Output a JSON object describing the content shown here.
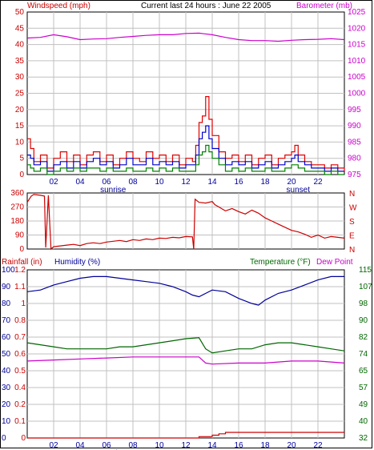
{
  "header": {
    "windspeed_label": "Windspeed (mph)",
    "title": "Current last 24 hours : June 22 2005",
    "barometer_label": "Barometer (mb)"
  },
  "colors": {
    "windspeed_gust": "#e00000",
    "windspeed_avg": "#0000cc",
    "windspeed_low": "#008000",
    "barometer": "#cc00cc",
    "direction": "#cc0000",
    "humidity": "#000099",
    "temperature": "#006600",
    "dewpoint": "#cc00cc",
    "rainfall": "#cc0000",
    "grid": "#c0c0c0"
  },
  "x_axis": {
    "ticks": [
      "02",
      "04",
      "06",
      "08",
      "10",
      "12",
      "14",
      "16",
      "18",
      "20",
      "22"
    ],
    "sunrise_label": "sunrise",
    "sunset_label": "sunset"
  },
  "panel2": {
    "degree_ticks": [
      "360",
      "270",
      "180",
      "90",
      "0"
    ],
    "compass_ticks": [
      "N",
      "W",
      "S",
      "E",
      "N"
    ]
  },
  "panel3": {
    "rainfall_label": "Rainfall (in)",
    "humidity_label": "Humidity (%)",
    "temperature_label": "Temperature (°F)",
    "dewpoint_label": "Dew Point"
  },
  "chart_data": [
    {
      "type": "line",
      "title": "Current last 24 hours : June 22 2005",
      "x_unit": "hour",
      "xlim": [
        0,
        24
      ],
      "ylabel_left": "Windspeed (mph)",
      "ylabel_right": "Barometer (mb)",
      "ylim_left": [
        0,
        50
      ],
      "ylim_right": [
        975,
        1025
      ],
      "yticks_left": [
        "0",
        "5",
        "10",
        "15",
        "20",
        "25",
        "30",
        "35",
        "40",
        "45",
        "50"
      ],
      "yticks_right": [
        "975",
        "980",
        "985",
        "990",
        "995",
        "1000",
        "1005",
        "1010",
        "1015",
        "1020",
        "1025"
      ],
      "grid": true,
      "series": [
        {
          "axis": "right",
          "x": [
            0,
            1,
            2,
            3,
            4,
            5,
            6,
            7,
            8,
            9,
            10,
            11,
            12,
            13,
            14,
            15,
            16,
            17,
            18,
            19,
            20,
            21,
            22,
            23,
            24
          ],
          "values": [
            1017,
            1017.2,
            1018,
            1017.4,
            1016.5,
            1016.7,
            1016.8,
            1017.2,
            1017.5,
            1017.8,
            1018,
            1018,
            1018.4,
            1018.5,
            1018,
            1017.2,
            1016.5,
            1016.2,
            1016.2,
            1016,
            1016.3,
            1016.5,
            1016.6,
            1016.8,
            1016.5
          ]
        },
        {
          "axis": "left",
          "x": [
            0,
            0.25,
            0.5,
            1,
            1.5,
            2,
            2.5,
            3,
            3.5,
            4,
            4.5,
            5,
            5.5,
            6,
            6.5,
            7,
            7.5,
            8,
            8.5,
            9,
            9.5,
            10,
            10.5,
            11,
            11.5,
            12,
            12.5,
            12.75,
            13,
            13.25,
            13.5,
            13.75,
            14,
            14.5,
            15,
            15.5,
            16,
            16.5,
            17,
            17.5,
            18,
            18.5,
            19,
            19.5,
            20,
            20.25,
            20.5,
            21,
            21.5,
            22,
            22.5,
            23,
            23.5,
            24
          ],
          "values": [
            11,
            8,
            4,
            6,
            2,
            5,
            7,
            4,
            6,
            3,
            6,
            7,
            4,
            6,
            3,
            5,
            7,
            5,
            4,
            7,
            5,
            6,
            4,
            6,
            3,
            5,
            4,
            9,
            16,
            18,
            24,
            17,
            12,
            7,
            5,
            6,
            4,
            6,
            3,
            5,
            6,
            3,
            5,
            6,
            7,
            9,
            6,
            4,
            3,
            3,
            2,
            3,
            2,
            1
          ]
        },
        {
          "axis": "left",
          "x": [
            0,
            0.25,
            0.5,
            1,
            1.5,
            2,
            2.5,
            3,
            3.5,
            4,
            4.5,
            5,
            5.5,
            6,
            6.5,
            7,
            7.5,
            8,
            8.5,
            9,
            9.5,
            10,
            10.5,
            11,
            11.5,
            12,
            12.5,
            12.75,
            13,
            13.25,
            13.5,
            13.75,
            14,
            14.5,
            15,
            15.5,
            16,
            16.5,
            17,
            17.5,
            18,
            18.5,
            19,
            19.5,
            20,
            20.25,
            20.5,
            21,
            21.5,
            22,
            22.5,
            23,
            23.5,
            24
          ],
          "values": [
            6,
            5,
            3,
            4,
            1,
            3,
            4,
            2,
            4,
            2,
            4,
            5,
            3,
            4,
            2,
            3,
            5,
            3,
            3,
            5,
            3,
            4,
            3,
            4,
            2,
            3,
            3,
            6,
            11,
            13,
            15,
            11,
            8,
            5,
            3,
            4,
            3,
            4,
            2,
            3,
            4,
            2,
            3,
            4,
            5,
            6,
            4,
            3,
            2,
            2,
            1,
            2,
            1,
            1
          ]
        },
        {
          "axis": "left",
          "x": [
            0,
            0.25,
            0.5,
            1,
            1.5,
            2,
            2.5,
            3,
            3.5,
            4,
            4.5,
            5,
            5.5,
            6,
            6.5,
            7,
            7.5,
            8,
            8.5,
            9,
            9.5,
            10,
            10.5,
            11,
            11.5,
            12,
            12.5,
            12.75,
            13,
            13.25,
            13.5,
            13.75,
            14,
            14.5,
            15,
            15.5,
            16,
            16.5,
            17,
            17.5,
            18,
            18.5,
            19,
            19.5,
            20,
            20.25,
            20.5,
            21,
            21.5,
            22,
            22.5,
            23,
            23.5,
            24
          ],
          "values": [
            3,
            2,
            1,
            2,
            0,
            1,
            2,
            1,
            2,
            1,
            2,
            2,
            1,
            2,
            1,
            1,
            2,
            1,
            1,
            2,
            1,
            2,
            1,
            2,
            1,
            1,
            1,
            3,
            6,
            7,
            9,
            7,
            5,
            3,
            1,
            2,
            1,
            2,
            1,
            1,
            2,
            1,
            1,
            2,
            3,
            3,
            2,
            1,
            1,
            1,
            0,
            1,
            0,
            0
          ]
        }
      ]
    },
    {
      "type": "line",
      "ylabel_left": "",
      "ylim": [
        0,
        360
      ],
      "yticks": [
        "360",
        "270",
        "180",
        "90",
        "0"
      ],
      "grid": true,
      "series": [
        {
          "x": [
            0,
            0.3,
            0.5,
            1,
            1.3,
            1.4,
            1.6,
            1.8,
            2,
            2.5,
            3,
            3.5,
            4,
            4.5,
            5,
            5.5,
            6,
            6.5,
            7,
            7.5,
            8,
            8.5,
            9,
            9.5,
            10,
            10.5,
            11,
            11.5,
            12,
            12.5,
            12.6,
            12.7,
            13,
            13.5,
            14,
            14.2,
            14.5,
            15,
            15.5,
            16,
            16.5,
            17,
            17.5,
            18,
            18.5,
            19,
            19.5,
            20,
            20.5,
            21,
            21.5,
            22,
            22.5,
            23,
            24
          ],
          "values": [
            300,
            340,
            350,
            345,
            340,
            10,
            345,
            0,
            15,
            20,
            25,
            30,
            22,
            35,
            40,
            35,
            45,
            50,
            55,
            48,
            60,
            55,
            65,
            60,
            70,
            68,
            75,
            72,
            80,
            78,
            0,
            320,
            300,
            295,
            305,
            285,
            270,
            245,
            260,
            240,
            225,
            250,
            230,
            200,
            180,
            160,
            140,
            120,
            110,
            95,
            75,
            90,
            70,
            80,
            70
          ]
        }
      ]
    },
    {
      "type": "line",
      "xlim": [
        0,
        24
      ],
      "ylabel_left": "Humidity (%)",
      "ylabel_left_outer": "Rainfall (in)",
      "ylabel_right": "Temperature (°F)",
      "ylabel_right_2": "Dew Point",
      "ylim_humidity": [
        0,
        100
      ],
      "ylim_rain": [
        0,
        1.2
      ],
      "ylim_temp": [
        32,
        115
      ],
      "yticks_humidity": [
        "100",
        "90",
        "80",
        "70",
        "60",
        "50",
        "40",
        "30",
        "20",
        "10",
        "0"
      ],
      "yticks_rain": [
        "1.2",
        "1.1",
        "1",
        "0.8",
        "0.7",
        "0.6",
        "0.5",
        "0.4",
        "0.2",
        "0.1",
        "0"
      ],
      "yticks_temp": [
        "115",
        "107",
        "98",
        "90",
        "82",
        "74",
        "65",
        "57",
        "49",
        "40",
        "32"
      ],
      "grid": true,
      "series": [
        {
          "name": "Humidity (%)",
          "x": [
            0,
            1,
            2,
            3,
            4,
            5,
            6,
            7,
            8,
            9,
            10,
            11,
            12,
            12.5,
            13,
            13.5,
            14,
            15,
            16,
            17,
            17.5,
            18,
            19,
            20,
            21,
            22,
            23,
            24
          ],
          "values": [
            87,
            88,
            91,
            93,
            95,
            96,
            96,
            95,
            94,
            93,
            92,
            90,
            87,
            85,
            84,
            86,
            88,
            87,
            83,
            80,
            79,
            82,
            86,
            88,
            91,
            94,
            96,
            96
          ]
        },
        {
          "name": "Temperature (°F)",
          "x": [
            0,
            1,
            2,
            3,
            4,
            5,
            6,
            7,
            8,
            9,
            10,
            11,
            12,
            13,
            13.5,
            14,
            15,
            16,
            17,
            18,
            19,
            20,
            21,
            22,
            23,
            24
          ],
          "values": [
            79,
            78,
            77,
            76,
            76,
            76,
            76,
            77,
            77,
            78,
            79,
            80,
            81,
            81.5,
            76,
            74,
            75,
            76,
            76,
            78,
            79,
            79,
            78,
            77,
            76,
            75
          ]
        },
        {
          "name": "Dew Point",
          "x": [
            0,
            2,
            4,
            6,
            8,
            10,
            12,
            13,
            13.5,
            14,
            16,
            18,
            20,
            22,
            24
          ],
          "values": [
            70,
            70.5,
            71,
            71.5,
            72,
            72,
            72,
            72,
            69,
            68.5,
            69,
            69,
            70,
            70,
            69
          ]
        },
        {
          "name": "Rainfall (in)",
          "x": [
            0,
            12.5,
            13,
            14,
            14.5,
            15,
            24
          ],
          "values": [
            0,
            0,
            0.01,
            0.02,
            0.03,
            0.04,
            0.04
          ]
        }
      ]
    }
  ]
}
